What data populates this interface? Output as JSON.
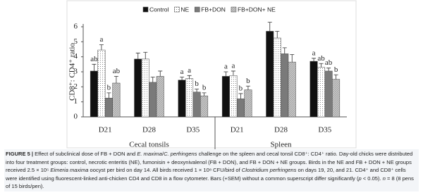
{
  "chart_data": {
    "type": "bar",
    "y_label": "CD8⁺: CD4⁺ ratio",
    "categories": [
      "D21",
      "D28",
      "D35",
      "D21",
      "D28",
      "D35"
    ],
    "category_groups": [
      "Cecal tonsils",
      "Cecal tonsils",
      "Cecal tonsils",
      "Spleen",
      "Spleen",
      "Spleen"
    ],
    "ylim": [
      0,
      6
    ],
    "yticks": [
      0,
      1,
      2,
      3,
      4,
      5,
      6
    ],
    "legend": "top",
    "series": [
      {
        "name": "Control",
        "color": "#111111",
        "pattern": null,
        "values": [
          3.05,
          3.85,
          2.45,
          2.7,
          5.7,
          3.7
        ],
        "errors": [
          0.45,
          0.4,
          0.2,
          0.3,
          0.6,
          0.2
        ],
        "letters": [
          "ab",
          null,
          "a",
          "a",
          null,
          "a"
        ]
      },
      {
        "name": "NE",
        "color": "#ffffff",
        "pattern": "dots",
        "values": [
          4.45,
          3.85,
          2.55,
          2.75,
          5.25,
          3.3
        ],
        "errors": [
          0.35,
          0.45,
          0.2,
          0.3,
          0.45,
          0.25
        ],
        "letters": [
          "a",
          null,
          "a",
          "a",
          null,
          "ab"
        ]
      },
      {
        "name": "FB+DON",
        "color": "#7a7a7a",
        "pattern": null,
        "values": [
          1.25,
          2.3,
          1.65,
          1.2,
          4.2,
          3.05
        ],
        "errors": [
          0.35,
          0.35,
          0.2,
          0.35,
          0.4,
          0.2
        ],
        "letters": [
          "b",
          null,
          "b",
          "b",
          null,
          "ab"
        ]
      },
      {
        "name": "FB+DON+ NE",
        "color": "#c8c8c8",
        "pattern": "hatch",
        "values": [
          2.25,
          2.7,
          1.4,
          1.8,
          3.65,
          2.5
        ],
        "errors": [
          0.45,
          0.35,
          0.2,
          0.25,
          0.5,
          0.3
        ],
        "letters": [
          "ab",
          null,
          "b",
          "b",
          null,
          "b"
        ]
      }
    ]
  },
  "caption": [
    {
      "text": "FIGURE 5 |",
      "bold": true
    },
    {
      "text": " Effect of subclinical dose of FB + DON and "
    },
    {
      "text": "E. maxima",
      "italic": true
    },
    {
      "text": "/"
    },
    {
      "text": "C. perfringens",
      "italic": true
    },
    {
      "text": " challenge on the spleen and cecal tonsil CD8⁺: CD4⁺ ratio. Day-old chicks were distributed into four treatment groups: control, necrotic enteritis (NE), fumonisin + deoxynivalenol (FB + DON), and FB + DON + NE groups. Birds in the NE and FB + DON + NE groups received 2.5 × 10⁵ "
    },
    {
      "text": "Eimeria maxima",
      "italic": true
    },
    {
      "text": " oocyst per bird on day 14. All birds received 1 × 10⁸ CFU/bird of "
    },
    {
      "text": "Clostridium perfringens",
      "italic": true
    },
    {
      "text": " on days 19, 20, and 21. CD4⁺ and CD8⁺ cells were identified using fluorescent-linked anti-chicken CD4 and CD8 in a flow cytometer. Bars (+SEM) without a common superscript differ significantly ("
    },
    {
      "text": "p",
      "italic": true
    },
    {
      "text": " < 0.05). "
    },
    {
      "text": "n",
      "italic": true
    },
    {
      "text": " = 8 (8 pens of 15 birds/pen)."
    }
  ]
}
